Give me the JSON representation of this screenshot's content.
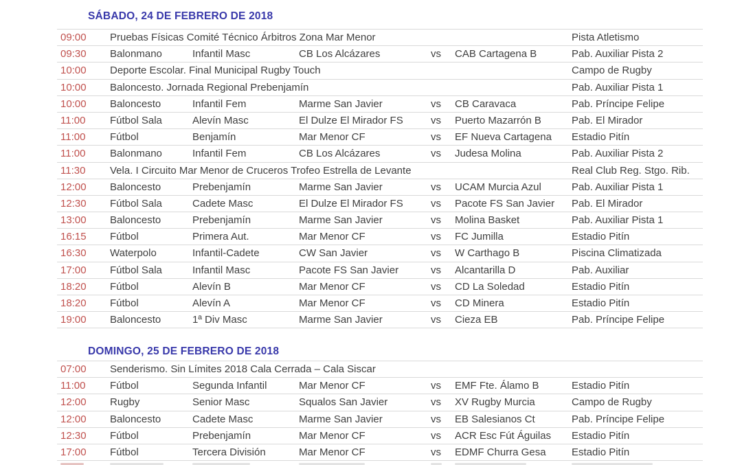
{
  "colors": {
    "time_red": "#c0504d",
    "body_text": "#3f3f3f",
    "header_blue": "#3838aa",
    "separator_line": "#d9d9d9",
    "background": "#ffffff"
  },
  "sections": [
    {
      "title": "SÁBADO, 24 DE FEBRERO DE 2018",
      "rows": [
        {
          "type": "event",
          "time": "09:00",
          "description": "Pruebas Físicas Comité Técnico Árbitros Zona Mar Menor",
          "venue": "Pista Atletismo"
        },
        {
          "type": "match",
          "time": "09:30",
          "sport": "Balonmano",
          "category": "Infantil Masc",
          "home": "CB Los Alcázares",
          "vs": "vs",
          "away": "CAB Cartagena B",
          "venue": "Pab. Auxiliar Pista 2"
        },
        {
          "type": "event",
          "time": "10:00",
          "description": "Deporte Escolar. Final Municipal Rugby Touch",
          "venue": "Campo de Rugby"
        },
        {
          "type": "event",
          "time": "10:00",
          "description": "Baloncesto. Jornada Regional Prebenjamín",
          "venue": "Pab. Auxiliar Pista 1"
        },
        {
          "type": "match",
          "time": "10:00",
          "sport": "Baloncesto",
          "category": "Infantil Fem",
          "home": "Marme San Javier",
          "vs": "vs",
          "away": "CB Caravaca",
          "venue": "Pab. Príncipe Felipe"
        },
        {
          "type": "match",
          "time": "11:00",
          "sport": "Fútbol Sala",
          "category": "Alevín Masc",
          "home": "El Dulze El Mirador FS",
          "vs": "vs",
          "away": "Puerto Mazarrón B",
          "venue": "Pab. El Mirador"
        },
        {
          "type": "match",
          "time": "11:00",
          "sport": "Fútbol",
          "category": "Benjamín",
          "home": "Mar Menor CF",
          "vs": "vs",
          "away": "EF Nueva Cartagena",
          "venue": "Estadio Pitín"
        },
        {
          "type": "match",
          "time": "11:00",
          "sport": "Balonmano",
          "category": "Infantil Fem",
          "home": "CB Los Alcázares",
          "vs": "vs",
          "away": "Judesa Molina",
          "venue": "Pab. Auxiliar Pista 2"
        },
        {
          "type": "event",
          "time": "11:30",
          "description": "Vela. I Circuito Mar Menor de Cruceros Trofeo Estrella de Levante",
          "venue": "Real Club Reg. Stgo. Rib."
        },
        {
          "type": "match",
          "time": "12:00",
          "sport": "Baloncesto",
          "category": "Prebenjamín",
          "home": "Marme San Javier",
          "vs": "vs",
          "away": "UCAM Murcia Azul",
          "venue": "Pab. Auxiliar Pista 1"
        },
        {
          "type": "match",
          "time": "12:30",
          "sport": "Fútbol Sala",
          "category": "Cadete Masc",
          "home": "El Dulze El Mirador FS",
          "vs": "vs",
          "away": "Pacote FS San Javier",
          "venue": "Pab. El Mirador"
        },
        {
          "type": "match",
          "time": "13:00",
          "sport": "Baloncesto",
          "category": "Prebenjamín",
          "home": "Marme San Javier",
          "vs": "vs",
          "away": "Molina Basket",
          "venue": "Pab. Auxiliar Pista 1"
        },
        {
          "type": "match",
          "time": "16:15",
          "sport": "Fútbol",
          "category": "Primera Aut.",
          "home": "Mar Menor CF",
          "vs": "vs",
          "away": "FC Jumilla",
          "venue": "Estadio Pitín"
        },
        {
          "type": "match",
          "time": "16:30",
          "sport": "Waterpolo",
          "category": "Infantil-Cadete",
          "home": "CW San Javier",
          "vs": "vs",
          "away": "W Carthago B",
          "venue": "Piscina Climatizada"
        },
        {
          "type": "match",
          "time": "17:00",
          "sport": "Fútbol Sala",
          "category": "Infantil Masc",
          "home": "Pacote FS San Javier",
          "vs": "vs",
          "away": "Alcantarilla D",
          "venue": "Pab. Auxiliar"
        },
        {
          "type": "match",
          "time": "18:20",
          "sport": "Fútbol",
          "category": "Alevín B",
          "home": "Mar Menor CF",
          "vs": "vs",
          "away": "CD La Soledad",
          "venue": "Estadio Pitín"
        },
        {
          "type": "match",
          "time": "18:20",
          "sport": "Fútbol",
          "category": "Alevín A",
          "home": "Mar Menor CF",
          "vs": "vs",
          "away": "CD Minera",
          "venue": "Estadio Pitín"
        },
        {
          "type": "match",
          "time": "19:00",
          "sport": "Baloncesto",
          "category": "1ª Div Masc",
          "home": "Marme San Javier",
          "vs": "vs",
          "away": "Cieza EB",
          "venue": "Pab. Príncipe Felipe"
        }
      ]
    },
    {
      "title": "DOMINGO, 25 DE FEBRERO DE 2018",
      "rows": [
        {
          "type": "event",
          "time": "07:00",
          "description": "Senderismo. Sin Límites 2018  Cala Cerrada – Cala Siscar",
          "venue": ""
        },
        {
          "type": "match",
          "time": "11:00",
          "sport": "Fútbol",
          "category": "Segunda Infantil",
          "home": "Mar Menor CF",
          "vs": "vs",
          "away": "EMF Fte. Álamo B",
          "venue": "Estadio Pitín"
        },
        {
          "type": "match",
          "time": "12:00",
          "sport": "Rugby",
          "category": "Senior Masc",
          "home": "Squalos San Javier",
          "vs": "vs",
          "away": "XV Rugby Murcia",
          "venue": "Campo de Rugby"
        },
        {
          "type": "match",
          "time": "12:00",
          "sport": "Baloncesto",
          "category": "Cadete Masc",
          "home": "Marme San Javier",
          "vs": "vs",
          "away": "EB Salesianos Ct",
          "venue": "Pab. Príncipe Felipe"
        },
        {
          "type": "match",
          "time": "12:30",
          "sport": "Fútbol",
          "category": "Prebenjamín",
          "home": "Mar Menor CF",
          "vs": "vs",
          "away": "ACR Esc Fút Águilas",
          "venue": "Estadio Pitín"
        },
        {
          "type": "match",
          "time": "17:00",
          "sport": "Fútbol",
          "category": "Tercera División",
          "home": "Mar Menor CF",
          "vs": "vs",
          "away": "EDMF Churra Gesa",
          "venue": "Estadio Pitín"
        },
        {
          "type": "partial"
        }
      ]
    }
  ]
}
